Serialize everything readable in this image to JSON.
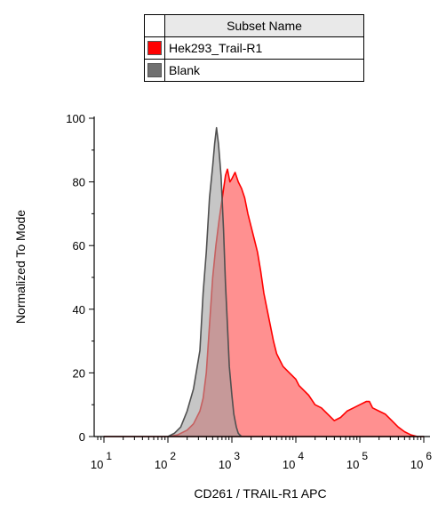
{
  "chart_data": {
    "type": "area",
    "xlabel": "CD261 / TRAIL-R1 APC",
    "ylabel": "Normalized To Mode",
    "xscale": "log",
    "xlim": [
      1,
      6
    ],
    "ylim": [
      0,
      100
    ],
    "y_ticks": [
      "0",
      "20",
      "40",
      "60",
      "80",
      "100"
    ],
    "x_ticks": [
      {
        "base": "10",
        "exp": "1"
      },
      {
        "base": "10",
        "exp": "2"
      },
      {
        "base": "10",
        "exp": "3"
      },
      {
        "base": "10",
        "exp": "4"
      },
      {
        "base": "10",
        "exp": "5"
      },
      {
        "base": "10",
        "exp": "6"
      }
    ],
    "legend": {
      "header": "Subset Name",
      "placement": "top",
      "entries": [
        {
          "label": "Hek293_Trail-R1",
          "color": "#ff0000"
        },
        {
          "label": "Blank",
          "color": "#707070"
        }
      ]
    },
    "series": [
      {
        "name": "Hek293_Trail-R1",
        "fill": "#ff9090",
        "stroke": "#ff0000",
        "points": [
          [
            1.0,
            0
          ],
          [
            1.5,
            0
          ],
          [
            2.0,
            0
          ],
          [
            2.15,
            0.5
          ],
          [
            2.3,
            2
          ],
          [
            2.4,
            4
          ],
          [
            2.5,
            8
          ],
          [
            2.55,
            12
          ],
          [
            2.6,
            20
          ],
          [
            2.65,
            35
          ],
          [
            2.7,
            50
          ],
          [
            2.75,
            60
          ],
          [
            2.8,
            68
          ],
          [
            2.85,
            75
          ],
          [
            2.9,
            82
          ],
          [
            2.93,
            84
          ],
          [
            2.97,
            80
          ],
          [
            3.0,
            81
          ],
          [
            3.05,
            83
          ],
          [
            3.1,
            80
          ],
          [
            3.15,
            78
          ],
          [
            3.2,
            75
          ],
          [
            3.25,
            70
          ],
          [
            3.3,
            66
          ],
          [
            3.35,
            62
          ],
          [
            3.4,
            58
          ],
          [
            3.45,
            52
          ],
          [
            3.5,
            45
          ],
          [
            3.55,
            40
          ],
          [
            3.6,
            35
          ],
          [
            3.65,
            30
          ],
          [
            3.7,
            26
          ],
          [
            3.75,
            24
          ],
          [
            3.8,
            22
          ],
          [
            3.9,
            20
          ],
          [
            4.0,
            18
          ],
          [
            4.05,
            16
          ],
          [
            4.1,
            15
          ],
          [
            4.2,
            13
          ],
          [
            4.3,
            10
          ],
          [
            4.4,
            9
          ],
          [
            4.5,
            7
          ],
          [
            4.6,
            5
          ],
          [
            4.7,
            6
          ],
          [
            4.8,
            8
          ],
          [
            4.9,
            9
          ],
          [
            5.0,
            10
          ],
          [
            5.1,
            11
          ],
          [
            5.15,
            11
          ],
          [
            5.2,
            9
          ],
          [
            5.3,
            8
          ],
          [
            5.4,
            7
          ],
          [
            5.5,
            5
          ],
          [
            5.6,
            3
          ],
          [
            5.7,
            1.5
          ],
          [
            5.8,
            0.5
          ],
          [
            5.9,
            0
          ],
          [
            6.0,
            0
          ]
        ]
      },
      {
        "name": "Blank",
        "fill": "#a0a0a0",
        "stroke": "#505050",
        "points": [
          [
            1.0,
            0
          ],
          [
            1.8,
            0
          ],
          [
            2.0,
            0
          ],
          [
            2.1,
            1
          ],
          [
            2.2,
            3
          ],
          [
            2.3,
            8
          ],
          [
            2.4,
            15
          ],
          [
            2.5,
            27
          ],
          [
            2.55,
            45
          ],
          [
            2.6,
            58
          ],
          [
            2.65,
            75
          ],
          [
            2.7,
            85
          ],
          [
            2.73,
            92
          ],
          [
            2.76,
            97
          ],
          [
            2.79,
            92
          ],
          [
            2.83,
            82
          ],
          [
            2.87,
            65
          ],
          [
            2.9,
            48
          ],
          [
            2.93,
            35
          ],
          [
            2.96,
            22
          ],
          [
            3.0,
            13
          ],
          [
            3.03,
            7
          ],
          [
            3.07,
            3
          ],
          [
            3.1,
            1
          ],
          [
            3.15,
            0
          ],
          [
            6.0,
            0
          ]
        ]
      }
    ]
  }
}
